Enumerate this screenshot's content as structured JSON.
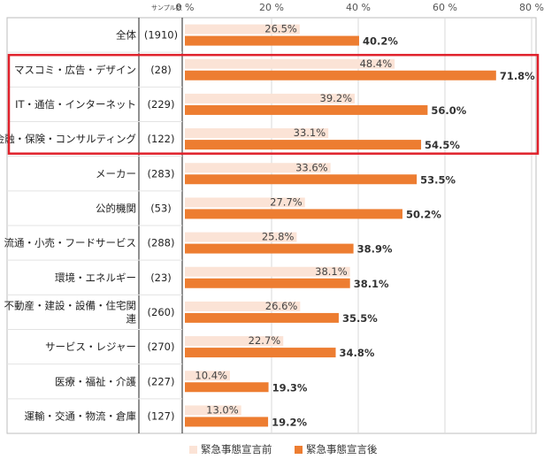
{
  "header": {
    "sample_label": "サンプル数"
  },
  "chart_data": {
    "type": "bar",
    "orientation": "horizontal",
    "xlim": [
      0,
      80
    ],
    "ticks": [
      "0 %",
      "20 %",
      "40 %",
      "60 %",
      "80 %"
    ],
    "tick_values": [
      0,
      20,
      40,
      60,
      80
    ],
    "categories": [
      "全体",
      "マスコミ・広告・デザイン",
      "IT・通信・インターネット",
      "金融・保険・コンサルティング",
      "メーカー",
      "公的機関",
      "流通・小売・フードサービス",
      "環境・エネルギー",
      "不動産・建設・設備・住宅関連",
      "サービス・レジャー",
      "医療・福祉・介護",
      "運輸・交通・物流・倉庫"
    ],
    "category_lines": [
      [
        "全体"
      ],
      [
        "マスコミ・広告・デザイン"
      ],
      [
        "IT・通信・インターネット"
      ],
      [
        "金融・保険・コンサルティング"
      ],
      [
        "メーカー"
      ],
      [
        "公的機関"
      ],
      [
        "流通・小売・フードサービス"
      ],
      [
        "環境・エネルギー"
      ],
      [
        "不動産・建設・設備・住宅関",
        "連"
      ],
      [
        "サービス・レジャー"
      ],
      [
        "医療・福祉・介護"
      ],
      [
        "運輸・交通・物流・倉庫"
      ]
    ],
    "sample_sizes": [
      "(1910)",
      "(28)",
      "(229)",
      "(122)",
      "(283)",
      "(53)",
      "(288)",
      "(23)",
      "(260)",
      "(270)",
      "(227)",
      "(127)"
    ],
    "series": [
      {
        "name": "緊急事態宣言前",
        "color": "#fbe3d6",
        "values": [
          26.5,
          48.4,
          39.2,
          33.1,
          33.6,
          27.7,
          25.8,
          38.1,
          26.6,
          22.7,
          10.4,
          13.0
        ],
        "labels": [
          "26.5%",
          "48.4%",
          "39.2%",
          "33.1%",
          "33.6%",
          "27.7%",
          "25.8%",
          "38.1%",
          "26.6%",
          "22.7%",
          "10.4%",
          "13.0%"
        ]
      },
      {
        "name": "緊急事態宣言後",
        "color": "#ed7d31",
        "values": [
          40.2,
          71.8,
          56.0,
          54.5,
          53.5,
          50.2,
          38.9,
          38.1,
          35.5,
          34.8,
          19.3,
          19.2
        ],
        "labels": [
          "40.2%",
          "71.8%",
          "56.0%",
          "54.5%",
          "53.5%",
          "50.2%",
          "38.9%",
          "38.1%",
          "35.5%",
          "34.8%",
          "19.3%",
          "19.2%"
        ]
      }
    ],
    "highlight_categories": [
      1,
      2,
      3
    ],
    "highlight_color": "#e0212b",
    "legend_position": "bottom-center"
  }
}
